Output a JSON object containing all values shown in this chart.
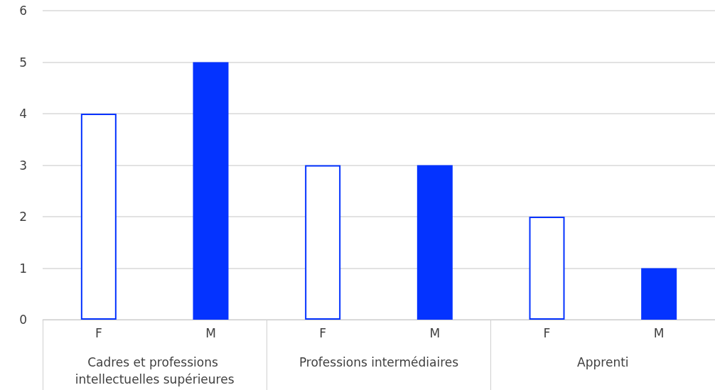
{
  "chart_data": {
    "type": "bar",
    "categories": [
      "F",
      "M",
      "F",
      "M",
      "F",
      "M"
    ],
    "values": [
      4,
      5,
      3,
      3,
      2,
      1
    ],
    "color": "#0433ff",
    "colors": [
      "#ffffff",
      "#0433ff",
      "#ffffff",
      "#0433ff",
      "#ffffff",
      "#0433ff"
    ],
    "annotations": [
      "Cadres et professions intellectuelles supérieures",
      "Professions intermédiaires",
      "Apprenti"
    ],
    "ylim": [
      0,
      6
    ],
    "yticks": [
      0,
      1,
      2,
      3,
      4,
      5,
      6
    ],
    "grid": "y"
  }
}
